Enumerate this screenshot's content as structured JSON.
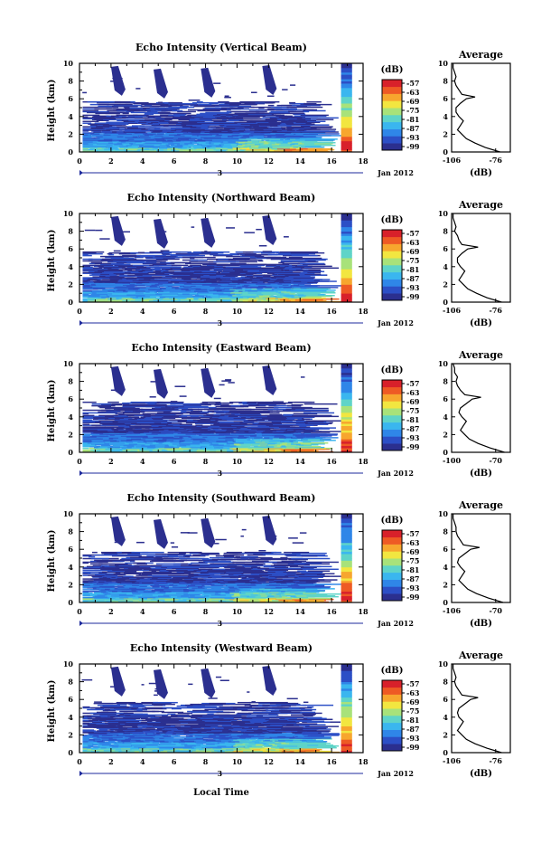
{
  "figure": {
    "xlabel": "Local Time",
    "date_label": "Jan 2012",
    "day_marker": "3"
  },
  "chart_data": [
    {
      "type": "heatmap",
      "title": "Echo Intensity (Vertical Beam)",
      "xlabel": "Local Time",
      "ylabel": "Height (km)",
      "xlim": [
        0,
        18
      ],
      "ylim": [
        0,
        10
      ],
      "x_ticks": [
        "0",
        "2",
        "4",
        "6",
        "8",
        "10",
        "12",
        "14",
        "16",
        "18"
      ],
      "y_ticks": [
        "0",
        "2",
        "4",
        "6",
        "8",
        "10"
      ],
      "data_end_hour": 14.5,
      "profile_strip_hours": [
        16.6,
        17.3
      ],
      "colorbar": {
        "label": "(dB)",
        "ticks": [
          "-57",
          "-63",
          "-69",
          "-75",
          "-81",
          "-87",
          "-93",
          "-99"
        ]
      },
      "average_profile": {
        "title": "Average",
        "xlabel": "(dB)",
        "x_ticks": [
          "-106",
          "-76"
        ],
        "xlim": [
          -106,
          -66
        ],
        "ylim": [
          0,
          10
        ],
        "heights": [
          0,
          0.5,
          1,
          1.5,
          2,
          2.5,
          3,
          3.5,
          4,
          4.5,
          5,
          5.5,
          6,
          6.2,
          6.5,
          7,
          7.5,
          8,
          8.5,
          9,
          9.5,
          10
        ],
        "values": [
          -73,
          -83,
          -90,
          -96,
          -99,
          -102,
          -100,
          -98,
          -101,
          -103,
          -103,
          -100,
          -96,
          -90,
          -99,
          -101,
          -103,
          -104,
          -103,
          -104,
          -105,
          -105
        ]
      }
    },
    {
      "type": "heatmap",
      "title": "Echo Intensity (Northward Beam)",
      "xlabel": "Local Time",
      "ylabel": "Height (km)",
      "xlim": [
        0,
        18
      ],
      "ylim": [
        0,
        10
      ],
      "x_ticks": [
        "0",
        "2",
        "4",
        "6",
        "8",
        "10",
        "12",
        "14",
        "16",
        "18"
      ],
      "y_ticks": [
        "0",
        "2",
        "4",
        "6",
        "8",
        "10"
      ],
      "data_end_hour": 14.5,
      "profile_strip_hours": [
        16.6,
        17.3
      ],
      "colorbar": {
        "label": "(dB)",
        "ticks": [
          "-57",
          "-63",
          "-69",
          "-75",
          "-81",
          "-87",
          "-93",
          "-99"
        ]
      },
      "average_profile": {
        "title": "Average",
        "xlabel": "(dB)",
        "x_ticks": [
          "-106",
          "-76"
        ],
        "xlim": [
          -106,
          -66
        ],
        "ylim": [
          0,
          10
        ],
        "heights": [
          0,
          0.5,
          1,
          1.5,
          2,
          2.5,
          3,
          3.5,
          4,
          4.5,
          5,
          5.5,
          6,
          6.2,
          6.5,
          7,
          7.5,
          8,
          8.5,
          9,
          9.5,
          10
        ],
        "values": [
          -72,
          -82,
          -89,
          -95,
          -98,
          -101,
          -99,
          -97,
          -100,
          -102,
          -102,
          -99,
          -95,
          -88,
          -99,
          -101,
          -102,
          -104,
          -103,
          -104,
          -105,
          -105
        ]
      }
    },
    {
      "type": "heatmap",
      "title": "Echo Intensity (Eastward Beam)",
      "xlabel": "Local Time",
      "ylabel": "Height (km)",
      "xlim": [
        0,
        18
      ],
      "ylim": [
        0,
        10
      ],
      "x_ticks": [
        "0",
        "2",
        "4",
        "6",
        "8",
        "10",
        "12",
        "14",
        "16",
        "18"
      ],
      "y_ticks": [
        "0",
        "2",
        "4",
        "6",
        "8",
        "10"
      ],
      "data_end_hour": 14.5,
      "profile_strip_hours": [
        16.6,
        17.3
      ],
      "colorbar": {
        "label": "(dB)",
        "ticks": [
          "-57",
          "-63",
          "-69",
          "-75",
          "-81",
          "-87",
          "-93",
          "-99"
        ]
      },
      "average_profile": {
        "title": "Average",
        "xlabel": "(dB)",
        "x_ticks": [
          "-100",
          "-70"
        ],
        "xlim": [
          -106,
          -66
        ],
        "ylim": [
          0,
          10
        ],
        "heights": [
          0,
          0.5,
          1,
          1.5,
          2,
          2.5,
          3,
          3.5,
          4,
          4.5,
          5,
          5.5,
          6,
          6.2,
          6.5,
          7,
          7.5,
          8,
          8.5,
          9,
          9.5,
          10
        ],
        "values": [
          -70,
          -80,
          -88,
          -94,
          -97,
          -100,
          -98,
          -96,
          -99,
          -101,
          -100,
          -96,
          -92,
          -86,
          -97,
          -100,
          -102,
          -103,
          -102,
          -104,
          -104,
          -105
        ]
      }
    },
    {
      "type": "heatmap",
      "title": "Echo Intensity (Southward Beam)",
      "xlabel": "Local Time",
      "ylabel": "Height (km)",
      "xlim": [
        0,
        18
      ],
      "ylim": [
        0,
        10
      ],
      "x_ticks": [
        "0",
        "2",
        "4",
        "6",
        "8",
        "10",
        "12",
        "14",
        "16",
        "18"
      ],
      "y_ticks": [
        "0",
        "2",
        "4",
        "6",
        "8",
        "10"
      ],
      "data_end_hour": 14.5,
      "profile_strip_hours": [
        16.6,
        17.3
      ],
      "colorbar": {
        "label": "(dB)",
        "ticks": [
          "-57",
          "-63",
          "-69",
          "-75",
          "-81",
          "-87",
          "-93",
          "-99"
        ]
      },
      "average_profile": {
        "title": "Average",
        "xlabel": "(dB)",
        "x_ticks": [
          "-106",
          "-70"
        ],
        "xlim": [
          -106,
          -66
        ],
        "ylim": [
          0,
          10
        ],
        "heights": [
          0,
          0.5,
          1,
          1.5,
          2,
          2.5,
          3,
          3.5,
          4,
          4.5,
          5,
          5.5,
          6,
          6.2,
          6.5,
          7,
          7.5,
          8,
          8.5,
          9,
          9.5,
          10
        ],
        "values": [
          -71,
          -81,
          -89,
          -95,
          -98,
          -101,
          -99,
          -97,
          -100,
          -102,
          -101,
          -97,
          -93,
          -87,
          -98,
          -100,
          -102,
          -103,
          -103,
          -104,
          -105,
          -105
        ]
      }
    },
    {
      "type": "heatmap",
      "title": "Echo Intensity (Westward Beam)",
      "xlabel": "Local Time",
      "ylabel": "Height (km)",
      "xlim": [
        0,
        18
      ],
      "ylim": [
        0,
        10
      ],
      "x_ticks": [
        "0",
        "2",
        "4",
        "6",
        "8",
        "10",
        "12",
        "14",
        "16",
        "18"
      ],
      "y_ticks": [
        "0",
        "2",
        "4",
        "6",
        "8",
        "10"
      ],
      "data_end_hour": 14.5,
      "profile_strip_hours": [
        16.6,
        17.3
      ],
      "colorbar": {
        "label": "(dB)",
        "ticks": [
          "-57",
          "-63",
          "-69",
          "-75",
          "-81",
          "-87",
          "-93",
          "-99"
        ]
      },
      "average_profile": {
        "title": "Average",
        "xlabel": "(dB)",
        "x_ticks": [
          "-106",
          "-76"
        ],
        "xlim": [
          -106,
          -66
        ],
        "ylim": [
          0,
          10
        ],
        "heights": [
          0,
          0.5,
          1,
          1.5,
          2,
          2.5,
          3,
          3.5,
          4,
          4.5,
          5,
          5.5,
          6,
          6.2,
          6.5,
          7,
          7.5,
          8,
          8.5,
          9,
          9.5,
          10
        ],
        "values": [
          -72,
          -82,
          -90,
          -96,
          -99,
          -102,
          -100,
          -98,
          -101,
          -102,
          -101,
          -97,
          -93,
          -88,
          -99,
          -101,
          -103,
          -104,
          -103,
          -104,
          -105,
          -105
        ]
      }
    }
  ],
  "colormap": [
    "#2b2f8f",
    "#2c4fc6",
    "#2f86e8",
    "#3ab6ef",
    "#5fd4c8",
    "#a8e27a",
    "#f2e640",
    "#f7a62e",
    "#ee5a24",
    "#d8202a"
  ]
}
